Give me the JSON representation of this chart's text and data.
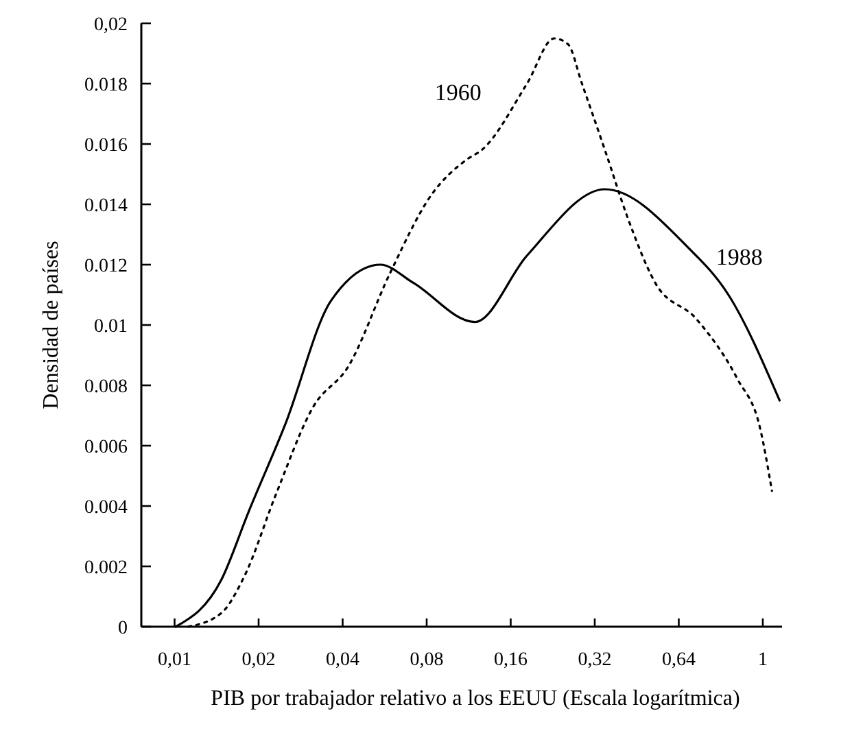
{
  "chart_data": {
    "type": "line",
    "xlabel": "PIB por trabajador relativo a los EEUU (Escala logarítmica)",
    "ylabel": "Densidad de países",
    "log": "x",
    "xlim": [
      0.0076,
      1.5
    ],
    "xticks": [
      {
        "value": 0.01,
        "label": "0,01"
      },
      {
        "value": 0.02,
        "label": "0,02"
      },
      {
        "value": 0.04,
        "label": "0,04"
      },
      {
        "value": 0.08,
        "label": "0,08"
      },
      {
        "value": 0.16,
        "label": "0,16"
      },
      {
        "value": 0.32,
        "label": "0,32"
      },
      {
        "value": 0.64,
        "label": "0,64"
      },
      {
        "value": 1.28,
        "label": "1"
      }
    ],
    "ylim": [
      0,
      0.02
    ],
    "yticks": [
      0,
      0.002,
      0.004,
      0.006,
      0.008,
      0.01,
      0.012,
      0.014,
      0.016,
      0.018,
      {
        "value": 0.02,
        "label": "0,02"
      }
    ],
    "grid": false,
    "marker": "none",
    "series": [
      {
        "name": "1960",
        "color": "#000000",
        "line_style": "dotted",
        "x": [
          0.0112,
          0.0147,
          0.0178,
          0.0231,
          0.0313,
          0.042,
          0.059,
          0.083,
          0.112,
          0.126,
          0.183,
          0.229,
          0.257,
          0.288,
          0.348,
          0.422,
          0.527,
          0.74,
          1.04,
          1.25,
          1.38
        ],
        "values": [
          0,
          0.00045,
          0.00168,
          0.0044,
          0.00727,
          0.00864,
          0.0117,
          0.0143,
          0.0155,
          0.0158,
          0.018,
          0.0195,
          0.0193,
          0.018,
          0.0158,
          0.0135,
          0.0114,
          0.0102,
          0.0082,
          0.0066,
          0.0045
        ]
      },
      {
        "name": "1988",
        "color": "#000000",
        "line_style": "solid",
        "x": [
          0.0101,
          0.0147,
          0.0184,
          0.0249,
          0.0363,
          0.0546,
          0.0716,
          0.119,
          0.183,
          0.348,
          0.686,
          0.964,
          1.47
        ],
        "values": [
          0,
          0.00155,
          0.0038,
          0.0067,
          0.0108,
          0.012,
          0.0114,
          0.0101,
          0.0123,
          0.0145,
          0.0126,
          0.011,
          0.0075
        ]
      }
    ]
  }
}
